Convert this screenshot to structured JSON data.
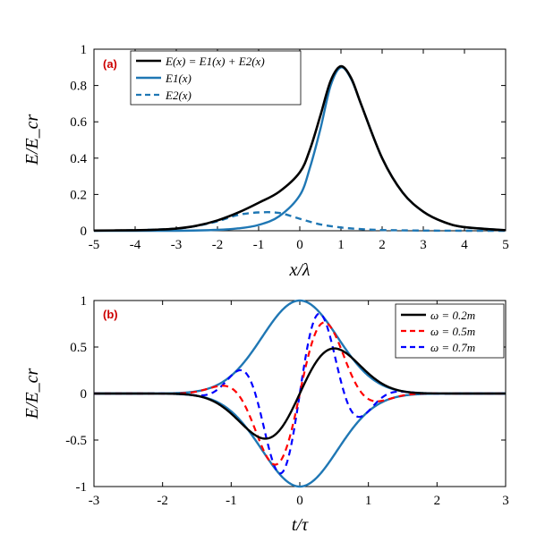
{
  "colors": {
    "black": "#000000",
    "blue": "#1f77b4",
    "red": "#ff0000",
    "navy": "#0000ff",
    "tag": "#cc0000"
  },
  "chart_data": [
    {
      "type": "line",
      "panel_label": "(a)",
      "xlabel": "x/λ",
      "ylabel": "E/E_cr",
      "xlim": [
        -5,
        5
      ],
      "ylim": [
        0,
        1
      ],
      "xticks": [
        -5,
        -4,
        -3,
        -2,
        -1,
        0,
        1,
        2,
        3,
        4,
        5
      ],
      "xtick_labels": [
        "-5",
        "-4",
        "-3",
        "-2",
        "-1",
        "0",
        "1",
        "2",
        "3",
        "4",
        "5"
      ],
      "yticks": [
        0,
        0.2,
        0.4,
        0.6,
        0.8,
        1
      ],
      "ytick_labels": [
        "0",
        "0.2",
        "0.4",
        "0.6",
        "0.8",
        "1"
      ],
      "legend_position": "top-left",
      "series": [
        {
          "name": "E(x) = E1(x) + E2(x)",
          "color": "#000000",
          "style": "solid",
          "x": [
            -5,
            -4,
            -3.5,
            -3,
            -2.5,
            -2,
            -1.5,
            -1,
            -0.5,
            0,
            0.25,
            0.5,
            0.75,
            1,
            1.25,
            1.5,
            2,
            2.5,
            3,
            3.5,
            4,
            5
          ],
          "y": [
            0.001,
            0.003,
            0.006,
            0.012,
            0.028,
            0.057,
            0.1,
            0.154,
            0.215,
            0.322,
            0.45,
            0.634,
            0.826,
            0.906,
            0.84,
            0.69,
            0.4,
            0.21,
            0.105,
            0.048,
            0.02,
            0.003
          ]
        },
        {
          "name": "E1(x)",
          "color": "#1f77b4",
          "style": "solid",
          "x": [
            -5,
            -4,
            -3,
            -2,
            -1.5,
            -1,
            -0.5,
            0,
            0.25,
            0.5,
            0.75,
            1,
            1.25,
            1.5,
            2,
            2.5,
            3,
            3.5,
            4,
            5
          ],
          "y": [
            0,
            0,
            0,
            0.005,
            0.013,
            0.032,
            0.08,
            0.195,
            0.35,
            0.56,
            0.8,
            0.9,
            0.835,
            0.69,
            0.4,
            0.21,
            0.105,
            0.048,
            0.02,
            0.003
          ]
        },
        {
          "name": "E2(x)",
          "color": "#1f77b4",
          "style": "dashed",
          "x": [
            -5,
            -4,
            -3,
            -2.5,
            -2,
            -1.5,
            -1,
            -0.5,
            0,
            0.5,
            1,
            1.5,
            2,
            3,
            4,
            5
          ],
          "y": [
            0.001,
            0.003,
            0.012,
            0.027,
            0.052,
            0.087,
            0.101,
            0.098,
            0.066,
            0.035,
            0.018,
            0.009,
            0.004,
            0.001,
            0,
            0
          ]
        }
      ]
    },
    {
      "type": "line",
      "panel_label": "(b)",
      "xlabel": "t/τ",
      "ylabel": "E/E_cr",
      "xlim": [
        -3,
        3
      ],
      "ylim": [
        -1,
        1
      ],
      "xticks": [
        -3,
        -2,
        -1,
        0,
        1,
        2,
        3
      ],
      "xtick_labels": [
        "-3",
        "-2",
        "-1",
        "0",
        "1",
        "2",
        "3"
      ],
      "yticks": [
        -1,
        -0.5,
        0,
        0.5,
        1
      ],
      "ytick_labels": [
        "-1",
        "-0.5",
        "0",
        "0.5",
        "1"
      ],
      "legend_position": "top-right",
      "envelope": {
        "color": "#1f77b4",
        "width": 0.55
      },
      "series": [
        {
          "name": "ω = 0.2m",
          "color": "#000000",
          "style": "solid",
          "omega": 0.2
        },
        {
          "name": "ω = 0.5m",
          "color": "#ff0000",
          "style": "dashed",
          "omega": 0.5
        },
        {
          "name": "ω = 0.7m",
          "color": "#0000ff",
          "style": "dashed",
          "omega": 0.7
        }
      ]
    }
  ]
}
